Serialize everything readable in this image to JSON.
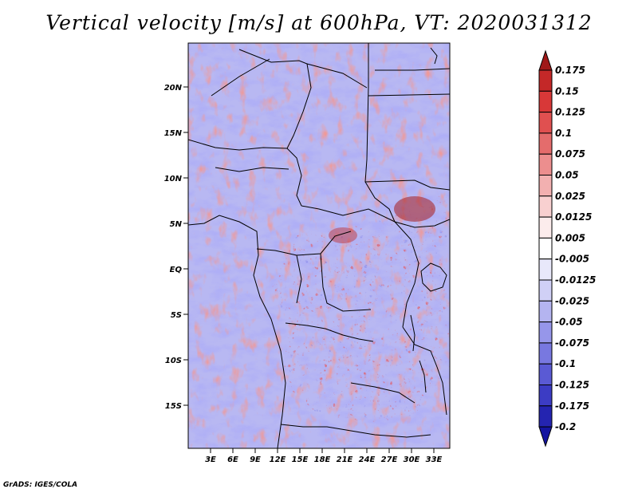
{
  "title": "Vertical velocity [m/s] at 600hPa, VT: 2020031312",
  "credit": "GrADS: IGES/COLA",
  "lat_labels": [
    "20N",
    "15N",
    "10N",
    "5N",
    "EQ",
    "5S",
    "10S",
    "15S"
  ],
  "lon_labels": [
    "3E",
    "6E",
    "9E",
    "12E",
    "15E",
    "18E",
    "21E",
    "24E",
    "27E",
    "30E",
    "33E"
  ],
  "colorbar": {
    "labels": [
      "0.175",
      "0.15",
      "0.125",
      "0.1",
      "0.075",
      "0.05",
      "0.025",
      "0.0125",
      "0.005",
      "-0.005",
      "-0.0125",
      "-0.025",
      "-0.05",
      "-0.075",
      "-0.1",
      "-0.125",
      "-0.175",
      "-0.2"
    ],
    "colors": [
      "#a01818",
      "#c42828",
      "#d83838",
      "#e05050",
      "#e46c6c",
      "#ec8e8e",
      "#f2b0b0",
      "#f8d0d0",
      "#fcecec",
      "#ffffff",
      "#e8e8fa",
      "#d0d0f6",
      "#b4b4f0",
      "#9696ea",
      "#7878e0",
      "#5a5ad4",
      "#3c3cc4",
      "#2424b0",
      "#1414a0"
    ]
  },
  "colors": {
    "positive": "#d23c3c",
    "negative": "#6a6ae6",
    "neutral": "#ffffff"
  }
}
